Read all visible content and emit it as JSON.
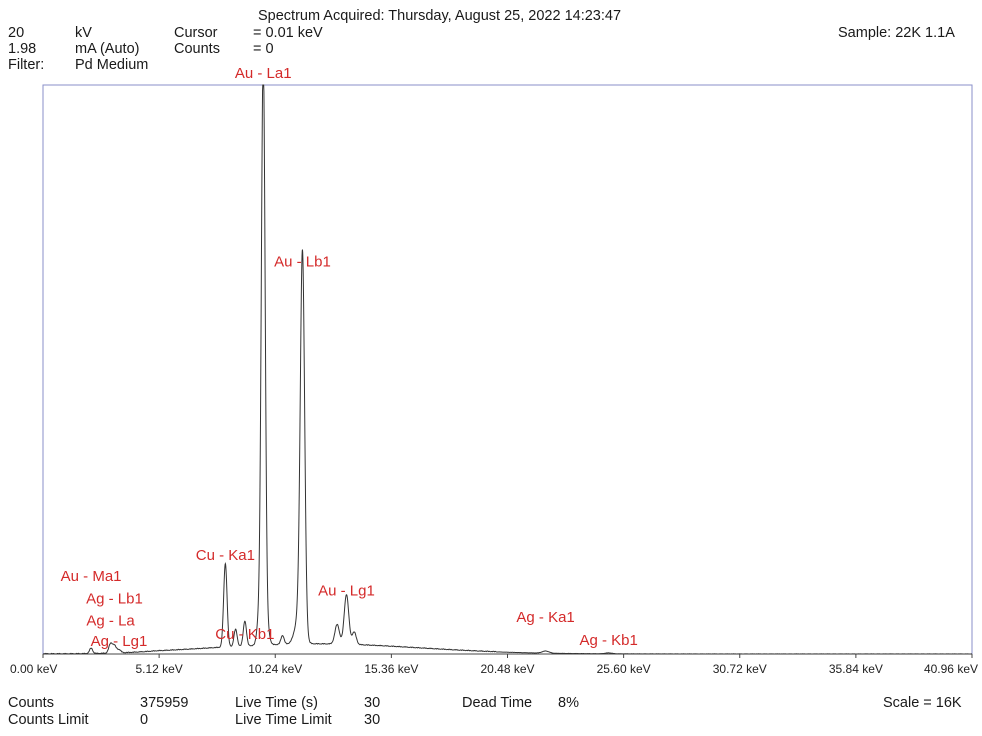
{
  "header": {
    "title": "Spectrum Acquired: Thursday, August 25, 2022 14:23:47",
    "voltage_value": "20",
    "voltage_unit": "kV",
    "current_value": "1.98",
    "current_unit": "mA (Auto)",
    "filter_label": "Filter:",
    "filter_value": "Pd Medium",
    "cursor_label": "Cursor",
    "cursor_value": "= 0.01 keV",
    "counts_label": "Counts",
    "counts_value": "= 0",
    "sample": "Sample: 22K 1.1A"
  },
  "footer": {
    "counts_label": "Counts",
    "counts_value": "375959",
    "counts_limit_label": "Counts Limit",
    "counts_limit_value": "0",
    "live_time_label": "Live Time (s)",
    "live_time_value": "30",
    "live_time_limit_label": "Live Time Limit",
    "live_time_limit_value": "30",
    "dead_time_label": "Dead Time",
    "dead_time_value": "8%",
    "scale": "Scale = 16K"
  },
  "chart_data": {
    "type": "line",
    "xunit": "keV",
    "xlim": [
      0,
      40.96
    ],
    "ylim": [
      0,
      16000
    ],
    "x_ticks": [
      {
        "value": 0,
        "label": "0.00 keV"
      },
      {
        "value": 5.12,
        "label": "5.12 keV"
      },
      {
        "value": 10.24,
        "label": "10.24 keV"
      },
      {
        "value": 15.36,
        "label": "15.36 keV"
      },
      {
        "value": 20.48,
        "label": "20.48 keV"
      },
      {
        "value": 25.6,
        "label": "25.60 keV"
      },
      {
        "value": 30.72,
        "label": "30.72 keV"
      },
      {
        "value": 35.84,
        "label": "35.84 keV"
      },
      {
        "value": 40.96,
        "label": "40.96 keV"
      }
    ],
    "peaks": [
      {
        "center": 2.12,
        "height": 150,
        "width": 0.07
      },
      {
        "center": 2.98,
        "height": 260,
        "width": 0.08
      },
      {
        "center": 3.15,
        "height": 200,
        "width": 0.08
      },
      {
        "center": 3.35,
        "height": 90,
        "width": 0.08
      },
      {
        "center": 8.04,
        "height": 2350,
        "width": 0.075
      },
      {
        "center": 8.49,
        "height": 480,
        "width": 0.07
      },
      {
        "center": 8.9,
        "height": 700,
        "width": 0.07
      },
      {
        "center": 9.5,
        "height": 600,
        "width": 0.08
      },
      {
        "center": 9.71,
        "height": 750,
        "width": 0.08
      },
      {
        "center": 9.93,
        "height": 300,
        "width": 0.08
      },
      {
        "center": 10.56,
        "height": 250,
        "width": 0.07
      },
      {
        "center": 9.71,
        "height": 15800,
        "width": 0.085
      },
      {
        "center": 11.44,
        "height": 10500,
        "width": 0.095
      },
      {
        "center": 11.3,
        "height": 800,
        "width": 0.18
      },
      {
        "center": 12.97,
        "height": 550,
        "width": 0.1
      },
      {
        "center": 13.38,
        "height": 1400,
        "width": 0.1
      },
      {
        "center": 13.72,
        "height": 350,
        "width": 0.09
      },
      {
        "center": 22.16,
        "height": 60,
        "width": 0.15
      },
      {
        "center": 24.94,
        "height": 25,
        "width": 0.15
      }
    ],
    "background": {
      "amplitude": 280,
      "center": 12.0,
      "width": 4.5
    },
    "annotations": [
      {
        "text": "Au - La1",
        "x": 9.71,
        "y": 16200
      },
      {
        "text": "Au - Lb1",
        "x": 11.44,
        "y": 10900
      },
      {
        "text": "Cu - Ka1",
        "x": 8.04,
        "y": 2650
      },
      {
        "text": "Au - Lg1",
        "x": 13.38,
        "y": 1650
      },
      {
        "text": "Cu - Kb1",
        "x": 8.9,
        "y": 420
      },
      {
        "text": "Au - Ma1",
        "x": 2.12,
        "y": 2050
      },
      {
        "text": "Ag - Lb1",
        "x": 3.15,
        "y": 1420
      },
      {
        "text": "Ag - La",
        "x": 2.98,
        "y": 800
      },
      {
        "text": "Ag - Lg1",
        "x": 3.35,
        "y": 230
      },
      {
        "text": "Ag - Ka1",
        "x": 22.16,
        "y": 900
      },
      {
        "text": "Ag - Kb1",
        "x": 24.94,
        "y": 250
      }
    ],
    "colors": {
      "axis": "#8a8fc8",
      "trace": "#333333",
      "annotation": "#d42a2a"
    }
  }
}
